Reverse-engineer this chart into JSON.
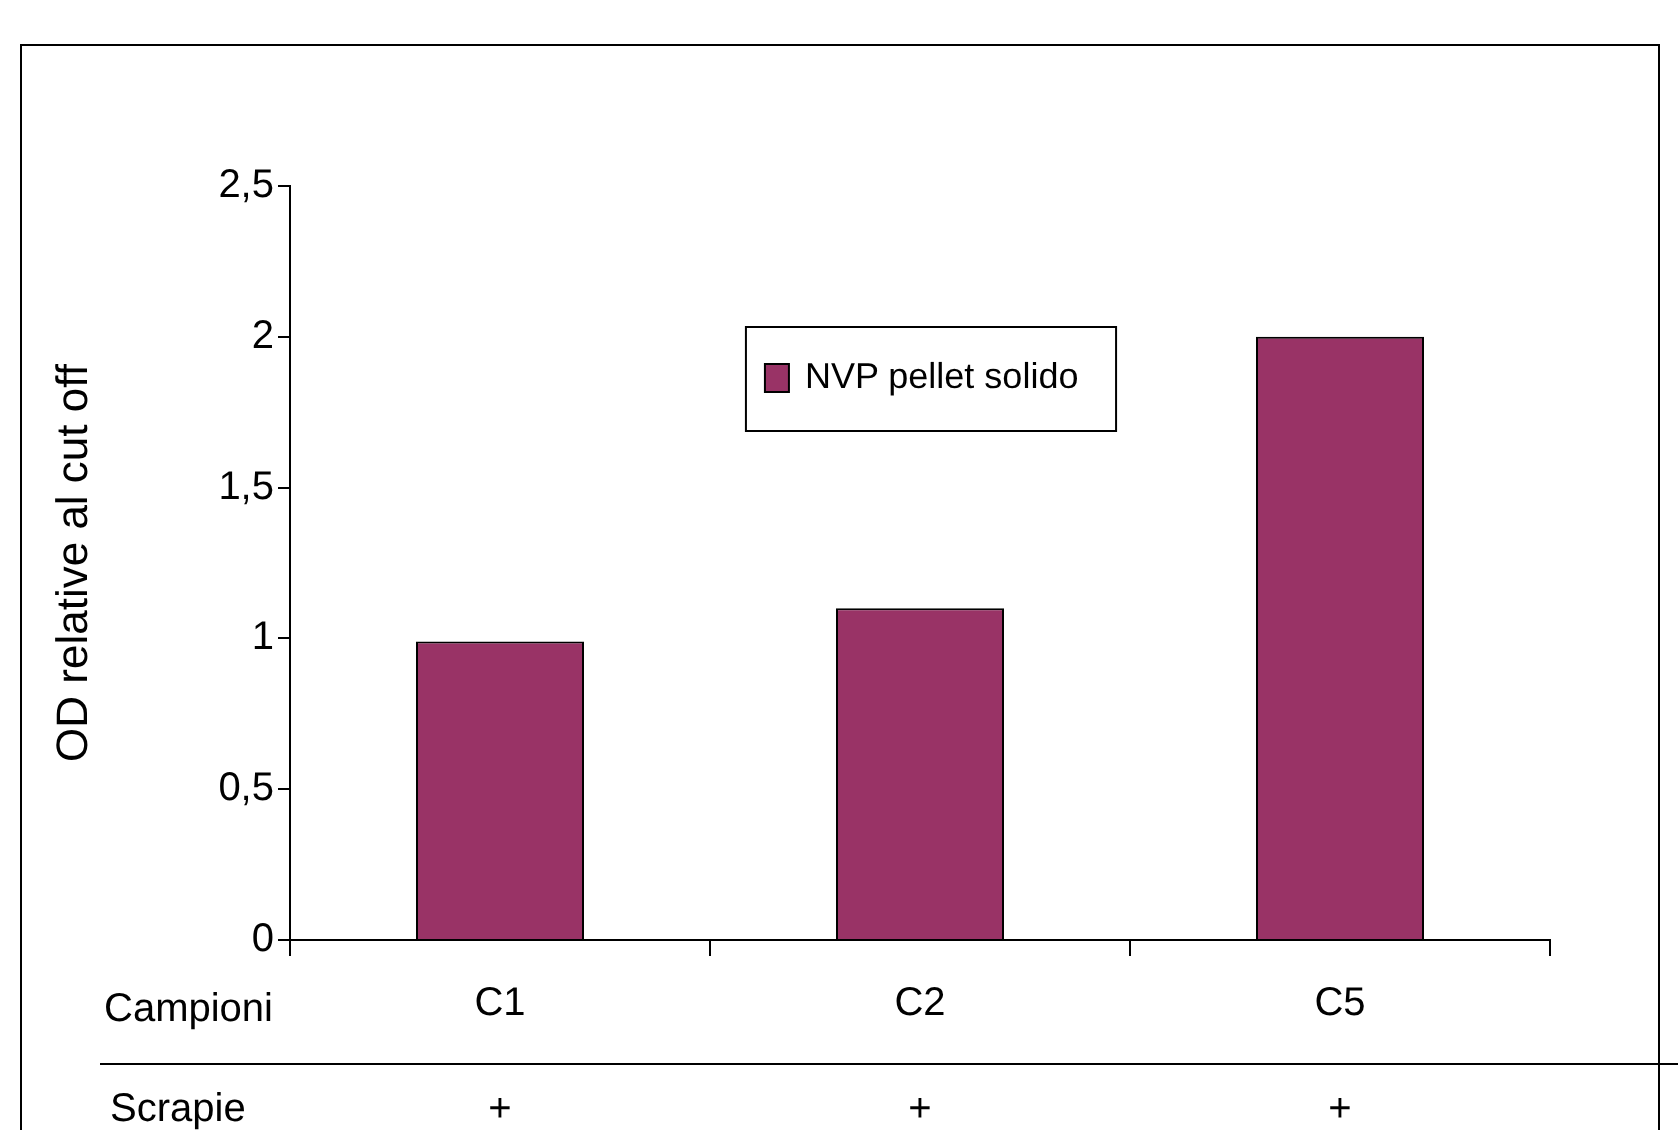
{
  "chart_data": {
    "type": "bar",
    "xlabel": "Campioni",
    "ylabel": "OD relative al cut off",
    "categories": [
      "C1",
      "C2",
      "C5"
    ],
    "series": [
      {
        "name": "NVP pellet solido",
        "color": "#993366",
        "values": [
          0.99,
          1.1,
          2.0
        ]
      }
    ],
    "ylim": [
      0,
      2.5
    ],
    "yticks": [
      0,
      {
        "value": 0.5,
        "label": "0,5"
      },
      1,
      {
        "value": 1.5,
        "label": "1,5"
      },
      2,
      {
        "value": 2.5,
        "label": "2,5"
      }
    ],
    "grid": false,
    "legend": "top",
    "annotations": [
      "Scrapie",
      "+",
      "+",
      "+"
    ]
  }
}
